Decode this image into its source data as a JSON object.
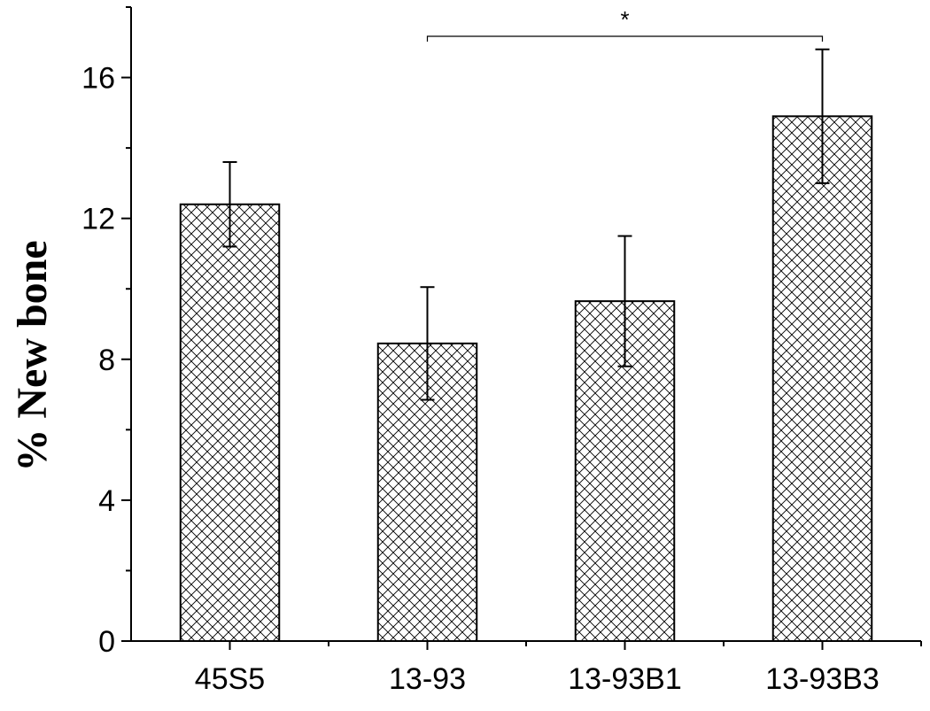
{
  "chart_data": {
    "type": "bar",
    "title": "",
    "xlabel": "",
    "ylabel": "% New bone",
    "categories": [
      "45S5",
      "13-93",
      "13-93B1",
      "13-93B3"
    ],
    "values": [
      12.4,
      8.45,
      9.65,
      14.9
    ],
    "errors": [
      1.2,
      1.6,
      1.85,
      1.9
    ],
    "ylim": [
      0,
      18
    ],
    "yticks": [
      0,
      4,
      8,
      12,
      16
    ],
    "ytick_labels": [
      "0",
      "4",
      "8",
      "12",
      "16"
    ],
    "grid": false,
    "bar_fill": "crosshatch",
    "significance": [
      {
        "from": "13-93",
        "to": "13-93B3",
        "label": "*"
      }
    ]
  }
}
